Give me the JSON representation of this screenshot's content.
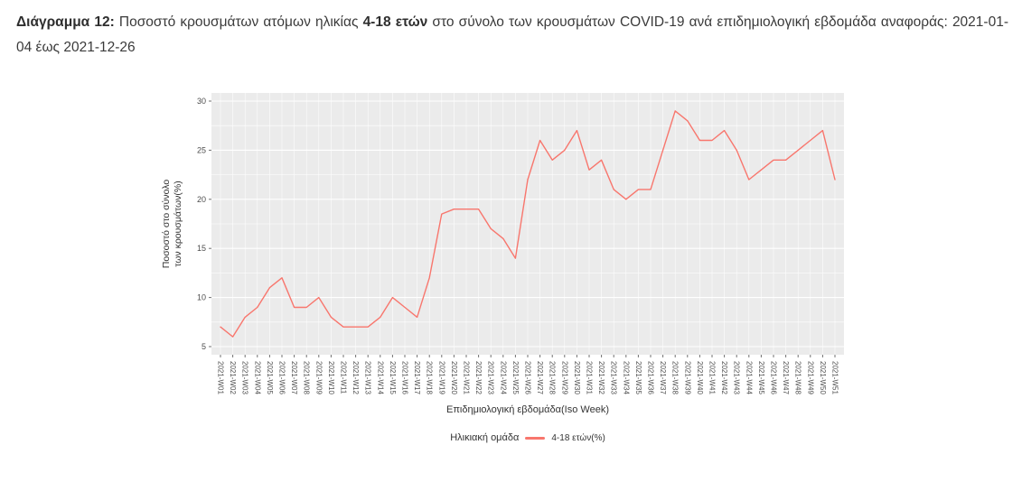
{
  "document": {
    "title": {
      "label_bold": "Διάγραμμα 12:",
      "text_before_bold": " Ποσοστό κρουσμάτων ατόμων ηλικίας ",
      "age_bold": "4-18 ετών",
      "text_after_bold": " στο σύνολο των κρουσμάτων COVID-19 ανά επιδημιολογική εβδομάδα αναφοράς: 2021-01-04 έως 2021-12-26"
    }
  },
  "chart_data": {
    "type": "line",
    "xlabel": "Επιδημιολογική εβδομάδα(Iso Week)",
    "ylabel": "Ποσοστό στο σύνολο των κρουσμάτων(%)",
    "ylabel_lines": [
      "Ποσοστό στο σύνολο",
      "των κρουσμάτων(%)"
    ],
    "ylim": [
      5,
      30
    ],
    "yticks": [
      5,
      10,
      15,
      20,
      25,
      30
    ],
    "grid": true,
    "panel_bg": "#ebebeb",
    "grid_color": "#ffffff",
    "tick_color": "#707070",
    "legend": {
      "title": "Ηλικιακή ομάδα",
      "position": "bottom"
    },
    "categories": [
      "2021-W01",
      "2021-W02",
      "2021-W03",
      "2021-W04",
      "2021-W05",
      "2021-W06",
      "2021-W07",
      "2021-W08",
      "2021-W09",
      "2021-W10",
      "2021-W11",
      "2021-W12",
      "2021-W13",
      "2021-W14",
      "2021-W15",
      "2021-W16",
      "2021-W17",
      "2021-W18",
      "2021-W19",
      "2021-W20",
      "2021-W21",
      "2021-W22",
      "2021-W23",
      "2021-W24",
      "2021-W25",
      "2021-W26",
      "2021-W27",
      "2021-W28",
      "2021-W29",
      "2021-W30",
      "2021-W31",
      "2021-W32",
      "2021-W33",
      "2021-W34",
      "2021-W35",
      "2021-W36",
      "2021-W37",
      "2021-W38",
      "2021-W39",
      "2021-W40",
      "2021-W41",
      "2021-W42",
      "2021-W43",
      "2021-W44",
      "2021-W45",
      "2021-W46",
      "2021-W47",
      "2021-W48",
      "2021-W49",
      "2021-W50",
      "2021-W51"
    ],
    "series": [
      {
        "name": "4-18 ετών(%)",
        "color": "#f8766d",
        "values": [
          7,
          6,
          8,
          9,
          11,
          12,
          9,
          9,
          10,
          8,
          7,
          7,
          7,
          8,
          10,
          9,
          8,
          12,
          18.5,
          19,
          19,
          19,
          17,
          16,
          14,
          22,
          26,
          24,
          25,
          27,
          23,
          24,
          21,
          20,
          21,
          21,
          25,
          29,
          28,
          26,
          26,
          27,
          25,
          22,
          23,
          24,
          24,
          25,
          26,
          27,
          22
        ]
      }
    ]
  }
}
